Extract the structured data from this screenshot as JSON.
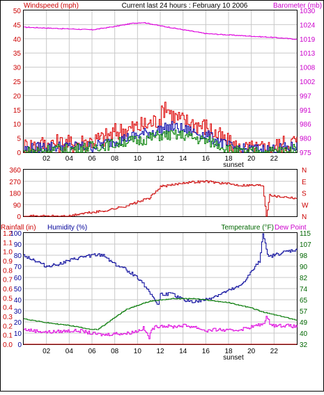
{
  "colors": {
    "wind_speed": "#dd0000",
    "wind_avg": "#008000",
    "wind_blue": "#0000aa",
    "barometer": "#dd00dd",
    "direction": "#cc0000",
    "humidity": "#000099",
    "temperature": "#007700",
    "dewpoint": "#dd00dd",
    "rain": "#cc0000",
    "axis_red": "#cc0000",
    "axis_magenta": "#cc00cc",
    "axis_blue": "#000099",
    "axis_green": "#006600",
    "grid": "#c8c8c8"
  },
  "header": {
    "windspeed_label": "Windspeed (mph)",
    "title": "Current last 24 hours : February 10 2006",
    "barometer_label": "Barometer (mb)"
  },
  "panel3": {
    "rainfall_label": "Rainfall (in)",
    "humidity_label": "Humidity (%)",
    "temperature_label": "Temperature (°F)",
    "dewpoint_label": "Dew Point"
  },
  "x_ticks": [
    "02",
    "04",
    "06",
    "08",
    "10",
    "12",
    "14",
    "16",
    "18",
    "20",
    "22"
  ],
  "sunset_label": "sunset",
  "chart_data": [
    {
      "type": "line",
      "x_range_hours": [
        0,
        24
      ],
      "axes": {
        "left": {
          "label": "Windspeed (mph)",
          "ticks": [
            "0",
            "5",
            "10",
            "15",
            "20",
            "25",
            "30",
            "35",
            "40",
            "45",
            "50"
          ],
          "range": [
            0,
            50
          ]
        },
        "right": {
          "label": "Barometer (mb)",
          "ticks": [
            "975",
            "980",
            "986",
            "991",
            "997",
            "1002",
            "1008",
            "1013",
            "1019",
            "1024",
            "1030"
          ],
          "range": [
            975,
            1030
          ]
        }
      },
      "series": [
        {
          "axis": "right",
          "color_key": "barometer",
          "points": [
            [
              0,
              1023.5
            ],
            [
              3,
              1023
            ],
            [
              6,
              1022.5
            ],
            [
              8,
              1023.8
            ],
            [
              9.5,
              1025
            ],
            [
              10.5,
              1025.3
            ],
            [
              12,
              1024
            ],
            [
              14,
              1022.5
            ],
            [
              16,
              1021
            ],
            [
              18,
              1020.5
            ],
            [
              20,
              1020
            ],
            [
              22,
              1019.5
            ],
            [
              24,
              1018.8
            ]
          ]
        },
        {
          "axis": "left",
          "color_key": "wind_speed",
          "points": [
            [
              0,
              2
            ],
            [
              2,
              3
            ],
            [
              4,
              3
            ],
            [
              6,
              4
            ],
            [
              7,
              5
            ],
            [
              8,
              7
            ],
            [
              9,
              8
            ],
            [
              10,
              9
            ],
            [
              11,
              10
            ],
            [
              12,
              12
            ],
            [
              12.4,
              17
            ],
            [
              13,
              13
            ],
            [
              14,
              11
            ],
            [
              15,
              10
            ],
            [
              16,
              9
            ],
            [
              17,
              6
            ],
            [
              18,
              3
            ],
            [
              19,
              1
            ],
            [
              20,
              1
            ],
            [
              21,
              1
            ],
            [
              22,
              2
            ],
            [
              23,
              3
            ],
            [
              24,
              4
            ]
          ]
        },
        {
          "axis": "left",
          "color_key": "wind_blue",
          "points": [
            [
              0,
              1
            ],
            [
              2,
              2
            ],
            [
              4,
              2
            ],
            [
              6,
              2
            ],
            [
              8,
              4
            ],
            [
              9,
              5
            ],
            [
              10,
              6
            ],
            [
              11,
              7
            ],
            [
              12,
              8
            ],
            [
              13,
              9
            ],
            [
              14,
              8
            ],
            [
              15,
              7
            ],
            [
              16,
              6
            ],
            [
              17,
              4
            ],
            [
              18,
              2
            ],
            [
              19,
              1
            ],
            [
              21,
              1
            ],
            [
              22,
              1
            ],
            [
              24,
              2
            ]
          ]
        },
        {
          "axis": "left",
          "color_key": "wind_avg",
          "points": [
            [
              0,
              0
            ],
            [
              2,
              1
            ],
            [
              4,
              1
            ],
            [
              6,
              2
            ],
            [
              8,
              3
            ],
            [
              9,
              4
            ],
            [
              10,
              4
            ],
            [
              11,
              5
            ],
            [
              12,
              6
            ],
            [
              13,
              6
            ],
            [
              14,
              6
            ],
            [
              15,
              5
            ],
            [
              16,
              4
            ],
            [
              17,
              3
            ],
            [
              18,
              1
            ],
            [
              19,
              0
            ],
            [
              21,
              0
            ],
            [
              24,
              1
            ]
          ]
        }
      ]
    },
    {
      "type": "line",
      "x_range_hours": [
        0,
        24
      ],
      "axes": {
        "left": {
          "ticks": [
            "0",
            "90",
            "180",
            "270",
            "360"
          ],
          "range": [
            0,
            360
          ]
        },
        "right": {
          "ticks": [
            "N",
            "W",
            "S",
            "E",
            "N"
          ]
        }
      },
      "series": [
        {
          "axis": "left",
          "color_key": "direction",
          "points": [
            [
              0,
              0
            ],
            [
              4,
              0
            ],
            [
              5,
              20
            ],
            [
              6,
              30
            ],
            [
              7,
              40
            ],
            [
              8,
              60
            ],
            [
              9,
              80
            ],
            [
              10,
              110
            ],
            [
              11,
              140
            ],
            [
              11.5,
              180
            ],
            [
              12,
              230
            ],
            [
              13,
              240
            ],
            [
              14,
              260
            ],
            [
              15,
              265
            ],
            [
              16,
              270
            ],
            [
              17,
              260
            ],
            [
              18,
              250
            ],
            [
              19,
              240
            ],
            [
              20,
              240
            ],
            [
              21,
              240
            ],
            [
              21.3,
              0
            ],
            [
              21.6,
              170
            ],
            [
              22,
              155
            ],
            [
              23,
              150
            ],
            [
              24,
              140
            ]
          ]
        }
      ]
    },
    {
      "type": "line",
      "x_range_hours": [
        0,
        24
      ],
      "axes": {
        "left_outer": {
          "label": "Rainfall (in)",
          "ticks": [
            "0.0",
            "0.1",
            "0.2",
            "0.3",
            "0.4",
            "0.5",
            "0.6",
            "0.7",
            "0.8",
            "0.9",
            "1.0",
            "1.1",
            "1.2"
          ],
          "range": [
            0,
            1.2
          ]
        },
        "left_inner": {
          "label": "Humidity (%)",
          "ticks": [
            "0",
            "10",
            "20",
            "30",
            "40",
            "50",
            "60",
            "70",
            "80",
            "90",
            "100"
          ],
          "range": [
            0,
            100
          ]
        },
        "right": {
          "label": "Temperature (°F)",
          "ticks": [
            "32",
            "40",
            "49",
            "57",
            "65",
            "74",
            "82",
            "90",
            "98",
            "107",
            "115"
          ],
          "range": [
            32,
            115
          ]
        }
      },
      "series": [
        {
          "axis": "left_inner",
          "color_key": "humidity",
          "points": [
            [
              0,
              80
            ],
            [
              1,
              75
            ],
            [
              2,
              70
            ],
            [
              3,
              72
            ],
            [
              4,
              75
            ],
            [
              5,
              78
            ],
            [
              6,
              80
            ],
            [
              7,
              80
            ],
            [
              8,
              72
            ],
            [
              9,
              67
            ],
            [
              10,
              60
            ],
            [
              11,
              48
            ],
            [
              11.8,
              35
            ],
            [
              12,
              45
            ],
            [
              13,
              45
            ],
            [
              14,
              40
            ],
            [
              15,
              38
            ],
            [
              16,
              40
            ],
            [
              17,
              44
            ],
            [
              18,
              48
            ],
            [
              19,
              52
            ],
            [
              20,
              65
            ],
            [
              20.7,
              75
            ],
            [
              21,
              100
            ],
            [
              21.5,
              78
            ],
            [
              22,
              80
            ],
            [
              23,
              83
            ],
            [
              24,
              85
            ]
          ]
        },
        {
          "axis": "right",
          "color_key": "temperature",
          "points": [
            [
              0,
              51
            ],
            [
              2,
              48
            ],
            [
              4,
              46
            ],
            [
              6,
              43
            ],
            [
              6.5,
              43
            ],
            [
              7,
              46
            ],
            [
              8,
              52
            ],
            [
              9,
              58
            ],
            [
              10,
              61
            ],
            [
              11,
              64
            ],
            [
              12,
              65
            ],
            [
              13,
              66
            ],
            [
              14,
              66
            ],
            [
              15,
              66
            ],
            [
              16,
              65
            ],
            [
              17,
              64
            ],
            [
              18,
              63
            ],
            [
              19,
              61
            ],
            [
              20,
              59
            ],
            [
              21,
              56
            ],
            [
              22,
              54
            ],
            [
              23,
              52
            ],
            [
              24,
              50
            ]
          ]
        },
        {
          "axis": "right",
          "color_key": "dewpoint",
          "points": [
            [
              0,
              43
            ],
            [
              2,
              41
            ],
            [
              4,
              42
            ],
            [
              5,
              42
            ],
            [
              6,
              40
            ],
            [
              7,
              39
            ],
            [
              8,
              40
            ],
            [
              9,
              40
            ],
            [
              10,
              42
            ],
            [
              10.5,
              44
            ],
            [
              11,
              37
            ],
            [
              11.3,
              44
            ],
            [
              12,
              46
            ],
            [
              13,
              45
            ],
            [
              14,
              46
            ],
            [
              15,
              45
            ],
            [
              16,
              42
            ],
            [
              17,
              43
            ],
            [
              18,
              42
            ],
            [
              19,
              43
            ],
            [
              20,
              45
            ],
            [
              21,
              47
            ],
            [
              21.3,
              52
            ],
            [
              21.6,
              48
            ],
            [
              22,
              46
            ],
            [
              23,
              46
            ],
            [
              24,
              45
            ]
          ]
        },
        {
          "axis": "left_outer",
          "color_key": "rain",
          "points": [
            [
              0,
              0
            ],
            [
              24,
              0
            ]
          ]
        }
      ]
    }
  ]
}
